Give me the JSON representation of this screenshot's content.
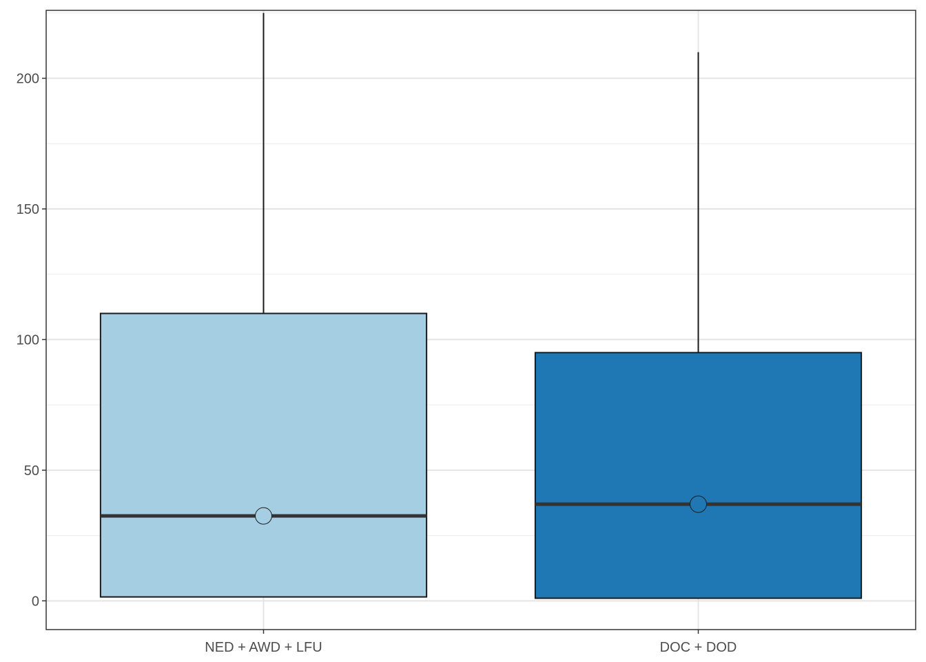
{
  "chart_data": {
    "type": "boxplot",
    "title": "",
    "xlabel": "",
    "ylabel": "",
    "ylim": [
      -11,
      226
    ],
    "yticks": [
      0,
      50,
      100,
      150,
      200
    ],
    "grid": true,
    "legend": "none",
    "categories": [
      "NED + AWD + LFU",
      "DOC + DOD"
    ],
    "boxes": [
      {
        "category": "NED + AWD + LFU",
        "min": 1.5,
        "q1": 1.5,
        "median": 32.5,
        "q3": 110,
        "max": 225,
        "mean": 32.5,
        "color": "#a6cee3"
      },
      {
        "category": "DOC + DOD",
        "min": 1,
        "q1": 1,
        "median": 37,
        "q3": 95,
        "max": 210,
        "mean": 37,
        "color": "#1f78b4"
      }
    ]
  }
}
